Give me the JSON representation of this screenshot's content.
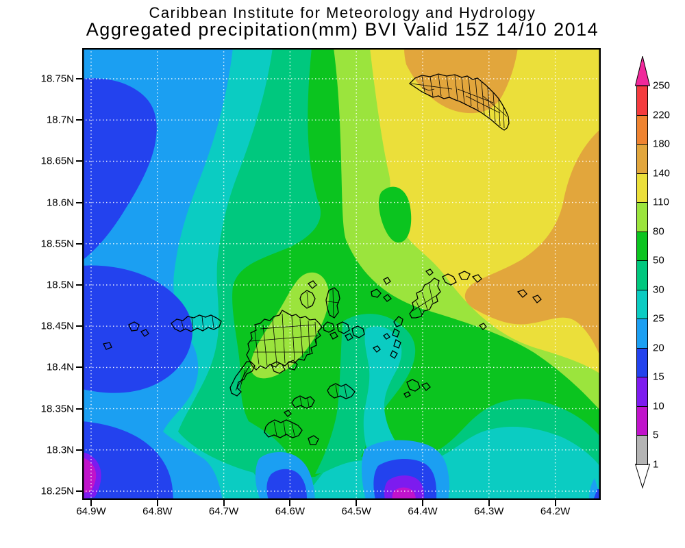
{
  "title": {
    "line1": "Caribbean Institute for Meteorology and Hydrology",
    "line2": "Aggregated precipitation(mm) BVI Valid 15Z 14/10 2014"
  },
  "axes": {
    "lat_labels": [
      "18.75N",
      "18.7N",
      "18.65N",
      "18.6N",
      "18.55N",
      "18.5N",
      "18.45N",
      "18.4N",
      "18.35N",
      "18.3N",
      "18.25N"
    ],
    "lon_labels": [
      "64.9W",
      "64.8W",
      "64.7W",
      "64.6W",
      "64.5W",
      "64.4W",
      "64.3W",
      "64.2W"
    ]
  },
  "colorbar": {
    "tick_labels": [
      "250",
      "220",
      "180",
      "140",
      "110",
      "80",
      "50",
      "30",
      "25",
      "20",
      "15",
      "10",
      "5",
      "1"
    ],
    "segment_colors": [
      "#f43b3e",
      "#ef8330",
      "#e2a63c",
      "#ebdf3a",
      "#9be43d",
      "#0bc41f",
      "#00c87e",
      "#0bccc2",
      "#1b9ff2",
      "#2342ee",
      "#7d1bef",
      "#c013cb",
      "#b4b4b4"
    ],
    "arrow_top_color": "#f0289b",
    "arrow_bottom_color": "#ffffff"
  },
  "colors": {
    "green": "#0bc41f",
    "sea_green": "#00c87e",
    "turquoise": "#0bccc2",
    "light_blue": "#1b9ff2",
    "blue": "#2342ee",
    "violet": "#7d1bef",
    "magenta": "#c013cb",
    "yellow_green": "#9be43d",
    "yellow": "#ebdf3a",
    "orange": "#e2a63c",
    "grid": "#ffffff",
    "island_outline": "#000000",
    "frame": "#000000"
  }
}
